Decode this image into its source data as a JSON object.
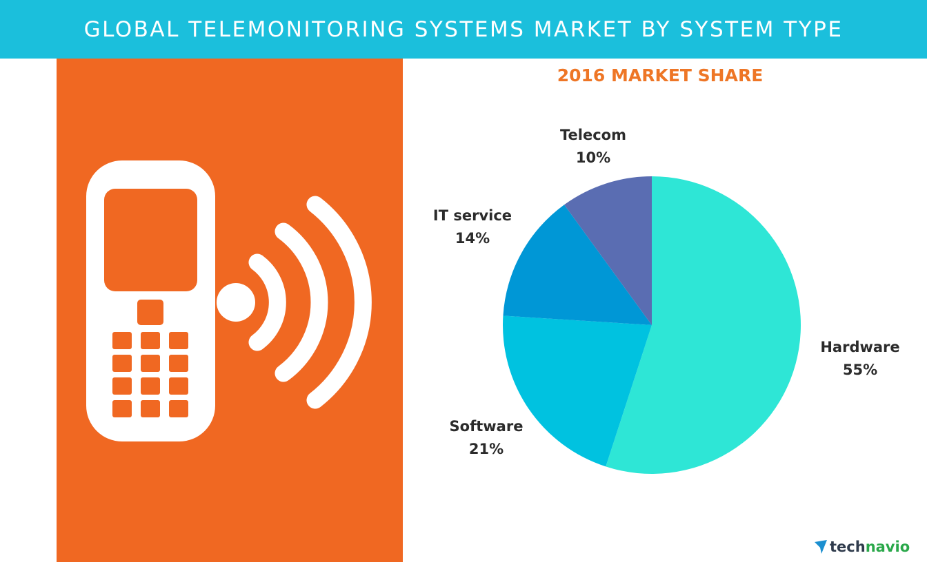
{
  "header": {
    "title": "GLOBAL TELEMONITORING SYSTEMS MARKET BY SYSTEM TYPE"
  },
  "colors": {
    "header_bg": "#1bbfdc",
    "panel_bg": "#f06822",
    "chart_title": "#ee7626",
    "label_text": "#2b2b2b",
    "logo_tech": "#2f3b4c",
    "logo_navio": "#2aa84a",
    "logo_mark": "#1b8fd0"
  },
  "illustration": {
    "icon": "mobile-phone-signal-icon"
  },
  "chart_data": {
    "type": "pie",
    "title": "2016 MARKET SHARE",
    "slices": [
      {
        "label": "Hardware",
        "value": 55,
        "display": "55%",
        "color": "#2ee6d6"
      },
      {
        "label": "Software",
        "value": 21,
        "display": "21%",
        "color": "#00c2e0"
      },
      {
        "label": "IT service",
        "value": 14,
        "display": "14%",
        "color": "#0097d6"
      },
      {
        "label": "Telecom",
        "value": 10,
        "display": "10%",
        "color": "#5a6db2"
      }
    ],
    "start": "12 o'clock",
    "direction": "clockwise"
  },
  "logo": {
    "part1": "tech",
    "part2": "navio",
    "icon": "technavio-logo-icon"
  }
}
